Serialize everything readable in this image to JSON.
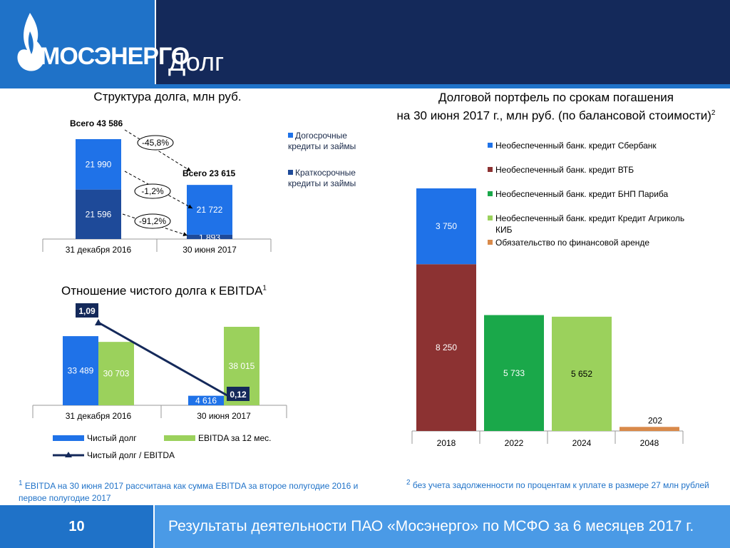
{
  "header": {
    "logo_text": "МОСЭНЕРГО",
    "title": "Долг"
  },
  "footer": {
    "page_number": "10",
    "text": "Результаты деятельности ПАО «Мосэнерго» по МСФО за 6 месяцев 2017 г."
  },
  "colors": {
    "blue": "#1f72e8",
    "dark_blue": "#1e4a99",
    "navy": "#14295a",
    "light_green": "#9bd15c",
    "green": "#1aa84a",
    "red_brown": "#8c3232",
    "orange": "#d98a4a"
  },
  "notes": {
    "note1": "EBITDA на 30 июня 2017 рассчитана как сумма EBITDA за второе полугодие 2016 и первое полугодие 2017",
    "note1_mark": "1",
    "note2": "без учета задолженности по процентам к уплате в размере 27 млн рублей",
    "note2_mark": "2"
  },
  "chart_data": [
    {
      "type": "bar",
      "stacked": true,
      "title": "Структура долга, млн руб.",
      "categories": [
        "31 декабря 2016",
        "30 июня 2017"
      ],
      "series": [
        {
          "name": "Краткосрочные кредиты и займы",
          "values": [
            21596,
            1893
          ],
          "labels": [
            "21 596",
            "1 893"
          ]
        },
        {
          "name": "Догосрочные кредиты и займы",
          "values": [
            21990,
            21722
          ],
          "labels": [
            "21 990",
            "21 722"
          ]
        }
      ],
      "totals": [
        "Всего 43 586",
        "Всего 23 615"
      ],
      "changes": [
        "-45,8%",
        "-1,2%",
        "-91,2%"
      ],
      "legend": [
        "Догосрочные кредиты и займы",
        "Краткосрочные кредиты и займы"
      ],
      "ylim": [
        0,
        50000
      ]
    },
    {
      "type": "bar",
      "title": "Отношение чистого долга к EBITDA",
      "title_sup": "1",
      "categories": [
        "31 декабря 2016",
        "30 июня 2017"
      ],
      "series": [
        {
          "name": "Чистый долг",
          "values": [
            33489,
            4616
          ],
          "labels": [
            "33 489",
            "4 616"
          ]
        },
        {
          "name": "EBITDA за 12 мес.",
          "values": [
            30703,
            38015
          ],
          "labels": [
            "30 703",
            "38 015"
          ]
        }
      ],
      "line": {
        "name": "Чистый долг / EBITDA",
        "values": [
          1.09,
          0.12
        ],
        "labels": [
          "1,09",
          "0,12"
        ]
      },
      "legend": [
        "Чистый долг",
        "EBITDA за 12 мес.",
        "Чистый долг / EBITDA"
      ],
      "ylim": [
        0,
        40000
      ]
    },
    {
      "type": "bar",
      "stacked": true,
      "title_line1": "Долговой портфель по срокам погашения",
      "title_line2": "на 30 июня 2017 г., млн руб. (по балансовой стоимости)",
      "title_sup": "2",
      "categories": [
        "2018",
        "2022",
        "2024",
        "2048"
      ],
      "series": [
        {
          "name": "Необеспеченный банк. кредит ВТБ",
          "values": [
            8250,
            0,
            0,
            0
          ],
          "labels": [
            "8 250",
            "",
            "",
            ""
          ]
        },
        {
          "name": "Необеспеченный банк. кредит Сбербанк",
          "values": [
            3750,
            0,
            0,
            0
          ],
          "labels": [
            "3 750",
            "",
            "",
            ""
          ]
        },
        {
          "name": "Необеспеченный банк. кредит БНП Париба",
          "values": [
            0,
            5733,
            0,
            0
          ],
          "labels": [
            "",
            "5 733",
            "",
            ""
          ]
        },
        {
          "name": "Необеспеченный банк. кредит Кредит Агриколь КИБ",
          "values": [
            0,
            0,
            5652,
            0
          ],
          "labels": [
            "",
            "",
            "5 652",
            ""
          ]
        },
        {
          "name": "Обязательство по финансовой аренде",
          "values": [
            0,
            0,
            0,
            202
          ],
          "labels": [
            "",
            "",
            "",
            "202"
          ]
        }
      ],
      "legend": [
        "Необеспеченный банк. кредит Сбербанк",
        "Необеспеченный банк. кредит ВТБ",
        "Необеспеченный банк. кредит БНП Париба",
        "Необеспеченный банк. кредит Кредит Агриколь КИБ",
        "Обязательство по финансовой аренде"
      ],
      "ylim": [
        0,
        12500
      ]
    }
  ]
}
